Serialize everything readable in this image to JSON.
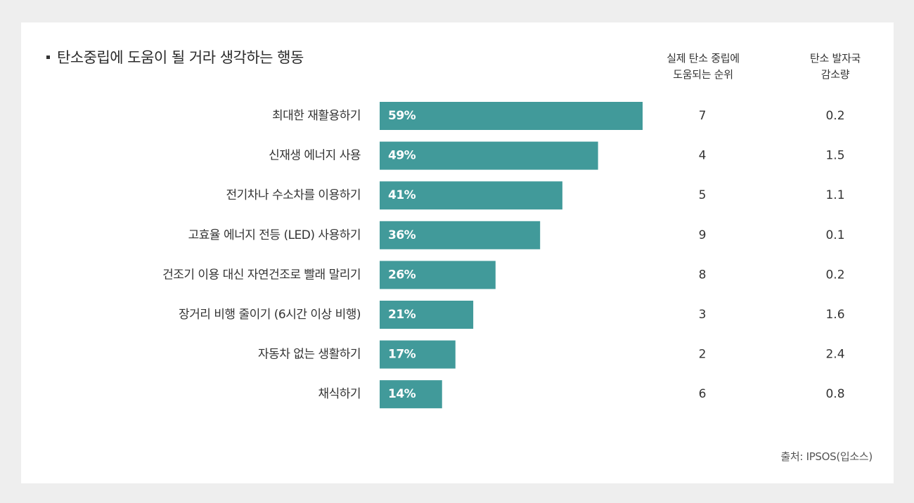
{
  "title": "탄소중립에 도움이 될 거라 생각하는 행동",
  "columns": {
    "rank": [
      "실제 탄소 중립에",
      "도움되는 순위"
    ],
    "reduction": [
      "탄소 발자국",
      "감소량"
    ]
  },
  "source": "출처: IPSOS(입소스)",
  "colors": {
    "bar": "#419a9a",
    "bar_label": "#ffffff",
    "background": "#eeeeee",
    "card": "#ffffff"
  },
  "chart_data": {
    "type": "bar",
    "orientation": "horizontal",
    "title": "탄소중립에 도움이 될 거라 생각하는 행동",
    "categories": [
      "최대한 재활용하기",
      "신재생 에너지 사용",
      "전기차나 수소차를 이용하기",
      "고효율 에너지 전등 (LED) 사용하기",
      "건조기 이용 대신 자연건조로 빨래 말리기",
      "장거리 비행 줄이기 (6시간 이상 비행)",
      "자동차 없는 생활하기",
      "채식하기"
    ],
    "values": [
      59,
      49,
      41,
      36,
      26,
      21,
      17,
      14
    ],
    "value_labels": [
      "59%",
      "49%",
      "41%",
      "36%",
      "26%",
      "21%",
      "17%",
      "14%"
    ],
    "rank": [
      "7",
      "4",
      "5",
      "9",
      "8",
      "3",
      "2",
      "6"
    ],
    "footprint_reduction": [
      "0.2",
      "1.5",
      "1.1",
      "0.1",
      "0.2",
      "1.6",
      "2.4",
      "0.8"
    ],
    "xlim": [
      0,
      59
    ],
    "grid": false
  }
}
